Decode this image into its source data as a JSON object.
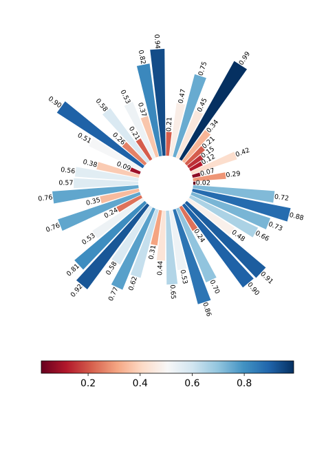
{
  "chart_data": {
    "type": "bar",
    "subtype": "circular-bar",
    "title": "",
    "values": [
      0.02,
      0.29,
      0.07,
      0.42,
      0.12,
      0.15,
      0.21,
      0.34,
      0.99,
      0.45,
      0.75,
      0.47,
      0.21,
      0.94,
      0.82,
      0.37,
      0.53,
      0.21,
      0.58,
      0.26,
      0.9,
      0.51,
      0.09,
      0.38,
      0.56,
      0.57,
      0.76,
      0.35,
      0.76,
      0.24,
      0.53,
      0.81,
      0.92,
      0.58,
      0.77,
      0.62,
      0.31,
      0.44,
      0.65,
      0.53,
      0.86,
      0.7,
      0.24,
      0.9,
      0.91,
      0.48,
      0.66,
      0.73,
      0.88,
      0.72
    ],
    "labels": [
      "0.02",
      "0.29",
      "0.07",
      "0.42",
      "0.12",
      "0.15",
      "0.21",
      "0.34",
      "0.99",
      "0.45",
      "0.75",
      "0.47",
      "0.21",
      "0.94",
      "0.82",
      "0.37",
      "0.53",
      "0.21",
      "0.58",
      "0.26",
      "0.90",
      "0.51",
      "0.09",
      "0.38",
      "0.56",
      "0.57",
      "0.76",
      "0.35",
      "0.76",
      "0.24",
      "0.53",
      "0.81",
      "0.92",
      "0.58",
      "0.77",
      "0.62",
      "0.31",
      "0.44",
      "0.65",
      "0.53",
      "0.86",
      "0.70",
      "0.24",
      "0.90",
      "0.91",
      "0.48",
      "0.66",
      "0.73",
      "0.88",
      "0.72"
    ],
    "colormap": "RdBu",
    "colorbar": {
      "orientation": "horizontal",
      "range": [
        0.02,
        0.99
      ],
      "ticks": [
        0.2,
        0.4,
        0.6,
        0.8
      ],
      "tick_labels": [
        "0.2",
        "0.4",
        "0.6",
        "0.8"
      ]
    },
    "grid": false,
    "legend": "none"
  }
}
